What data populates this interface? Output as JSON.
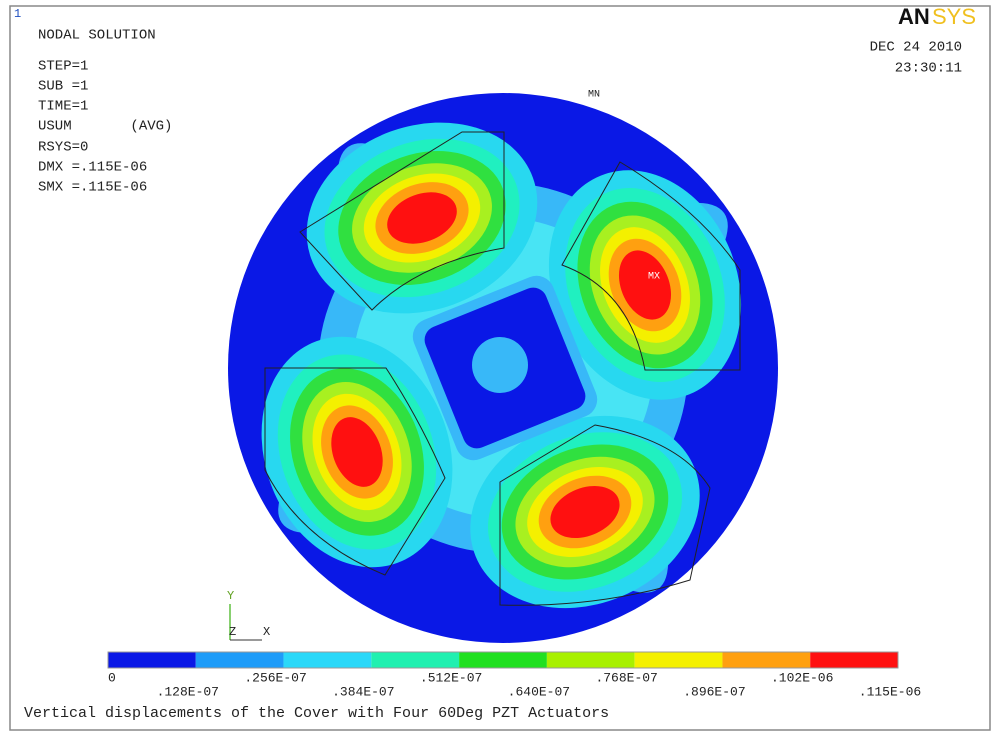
{
  "window_number": "1",
  "logo": {
    "an": "AN",
    "sys": "SYS"
  },
  "info": [
    "NODAL SOLUTION",
    "STEP=1",
    "SUB =1",
    "TIME=1",
    "USUM       (AVG)",
    "RSYS=0",
    "DMX =.115E-06",
    "SMX =.115E-06"
  ],
  "date": "DEC 24 2010",
  "time": "23:30:11",
  "markers": {
    "min": "MN",
    "max": "MX"
  },
  "axes": {
    "y": "Y",
    "z": "Z",
    "x": "X"
  },
  "legend": {
    "labels": [
      "0",
      ".128E-07",
      ".256E-07",
      ".384E-07",
      ".512E-07",
      ".640E-07",
      ".768E-07",
      ".896E-07",
      ".102E-06",
      ".115E-06"
    ]
  },
  "caption": "Vertical displacements of the Cover with Four 60Deg PZT Actuators"
}
